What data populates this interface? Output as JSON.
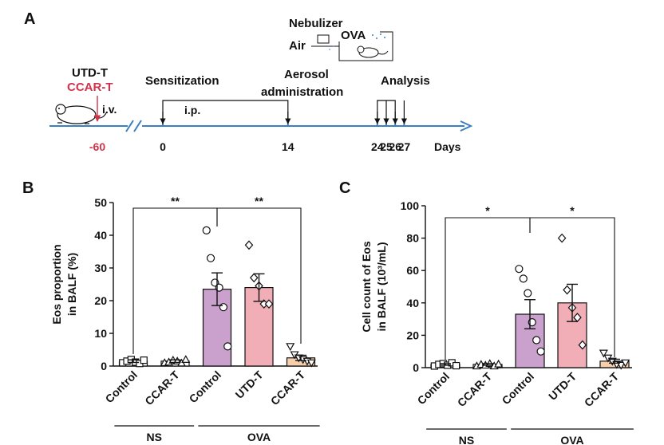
{
  "panels": {
    "a": "A",
    "b": "B",
    "c": "C"
  },
  "timeline": {
    "cells": [
      "UTD-T",
      "CCAR-T"
    ],
    "iv": "i.v.",
    "ip": "i.p.",
    "sensitization": "Sensitization",
    "aerosol": [
      "Aerosol",
      "administration"
    ],
    "analysis": "Analysis",
    "nebulizer": "Nebulizer",
    "air": "Air",
    "ova": "OVA",
    "days_label": "Days",
    "days": [
      "-60",
      "0",
      "14",
      "24",
      "25",
      "26",
      "27"
    ],
    "day_values": [
      -60,
      0,
      14,
      24,
      25,
      26,
      27
    ],
    "highlight_color": "#d0334a",
    "axis_color": "#3a7fc1"
  },
  "chart_data": [
    {
      "type": "bar",
      "panel": "B",
      "ylabel": [
        "Eos proportion",
        "in BALF (%)"
      ],
      "ylim": [
        0,
        50
      ],
      "yticks": [
        "0",
        "10",
        "20",
        "30",
        "40",
        "50"
      ],
      "categories": [
        "Control",
        "CCAR-T",
        "Control",
        "UTD-T",
        "CCAR-T"
      ],
      "groups": [
        {
          "label": "NS",
          "members": [
            0,
            1
          ]
        },
        {
          "label": "OVA",
          "members": [
            2,
            3,
            4
          ]
        }
      ],
      "values": [
        1.5,
        1.5,
        23.5,
        24,
        2.5
      ],
      "errors": [
        0.4,
        0.4,
        5,
        4.2,
        0.8
      ],
      "colors": [
        "#ffffff",
        "#ffffff",
        "#c9a1cc",
        "#f2aeb6",
        "#f8cfac"
      ],
      "markers": [
        "square",
        "triangle",
        "circle",
        "diamond",
        "triangle-down"
      ],
      "points": [
        [
          1.0,
          1.5,
          2.0,
          1.2,
          0.8,
          1.8
        ],
        [
          1.0,
          1.2,
          1.8,
          1.5,
          0.9,
          2.0
        ],
        [
          41.5,
          33,
          25.5,
          24,
          18,
          6
        ],
        [
          37,
          27,
          24.5,
          19,
          19
        ],
        [
          6,
          3.5,
          2.5,
          2.0,
          1.5,
          1.0
        ]
      ],
      "significance": [
        {
          "label": "**",
          "from": 0,
          "to": 2
        },
        {
          "label": "**",
          "from": 2,
          "to": 4
        }
      ]
    },
    {
      "type": "bar",
      "panel": "C",
      "ylabel": [
        "Cell count of Eos",
        "in BALF (10³/mL)"
      ],
      "ylim": [
        0,
        100
      ],
      "yticks": [
        "0",
        "20",
        "40",
        "60",
        "80",
        "100"
      ],
      "categories": [
        "Control",
        "CCAR-T",
        "Control",
        "UTD-T",
        "CCAR-T"
      ],
      "groups": [
        {
          "label": "NS",
          "members": [
            0,
            1
          ]
        },
        {
          "label": "OVA",
          "members": [
            2,
            3,
            4
          ]
        }
      ],
      "values": [
        2,
        2,
        33,
        40,
        4
      ],
      "errors": [
        0.5,
        0.5,
        9,
        11.5,
        1.2
      ],
      "colors": [
        "#ffffff",
        "#ffffff",
        "#c9a1cc",
        "#f2aeb6",
        "#f8cfac"
      ],
      "markers": [
        "square",
        "triangle",
        "circle",
        "diamond",
        "triangle-down"
      ],
      "points": [
        [
          1.0,
          2.0,
          2.5,
          1.5,
          3.0,
          1.2
        ],
        [
          1.0,
          2.0,
          1.5,
          2.5,
          1.0,
          2.2
        ],
        [
          61,
          55,
          46,
          28,
          17,
          10
        ],
        [
          80,
          48,
          37,
          31,
          14
        ],
        [
          9,
          6,
          4,
          2,
          1.5,
          3
        ]
      ],
      "significance": [
        {
          "label": "*",
          "from": 0,
          "to": 2
        },
        {
          "label": "*",
          "from": 2,
          "to": 4
        }
      ]
    }
  ]
}
